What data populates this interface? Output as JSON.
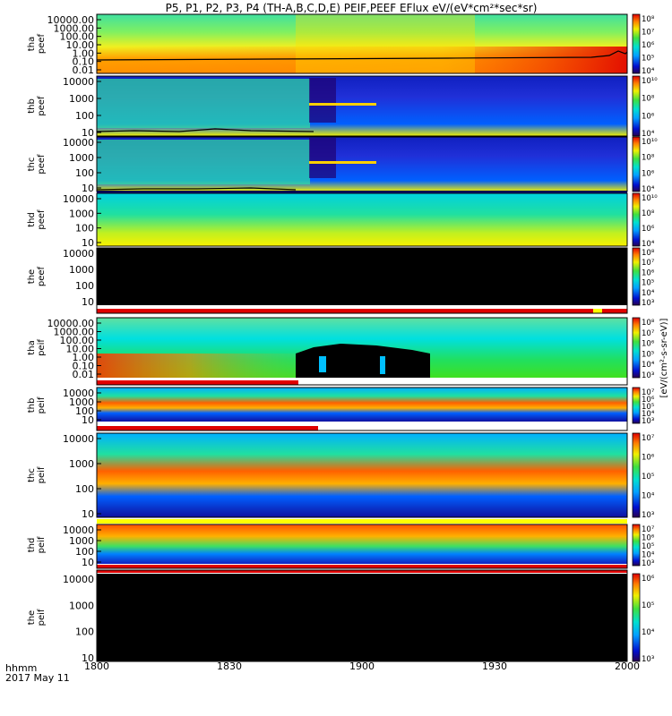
{
  "title": "P5, P1, P2, P3, P4 (TH-A,B,C,D,E) PEIF,PEEF EFlux eV/(eV*cm²*sec*sr)",
  "colorbar_label": "[eV/(cm²-s-sr-eV)]",
  "time_axis": {
    "label_line1": "hhmm",
    "label_line2": "2017 May 11",
    "ticks": [
      "1800",
      "1830",
      "1900",
      "1930",
      "2000"
    ]
  },
  "chart_data": [
    {
      "type": "heatmap",
      "ylabel": [
        "tha",
        "peef"
      ],
      "yticks": [
        "10000.00",
        "1000.00",
        "100.00",
        "10.00",
        "1.00",
        "0.10",
        "0.01"
      ],
      "colorbar_ticks": [
        "10⁸",
        "10⁷",
        "10⁶",
        "10⁵",
        "10⁴"
      ],
      "x_range": [
        "1800",
        "2000"
      ],
      "features": "warm (orange/red) flux band at low energy across interval; yellow/green at high energy; black potential trace near 1 eV"
    },
    {
      "type": "heatmap",
      "ylabel": [
        "thb",
        "peef"
      ],
      "yticks": [
        "10000",
        "1000",
        "100",
        "10"
      ],
      "colorbar_ticks": [
        "10¹⁰",
        "10⁸",
        "10⁶",
        "10⁴"
      ],
      "x_range": [
        "1800",
        "2000"
      ],
      "features": "green/cyan wavy structure 1800-1845, blue/purple after 1845; yellow band near 10 eV"
    },
    {
      "type": "heatmap",
      "ylabel": [
        "thc",
        "peef"
      ],
      "yticks": [
        "10000",
        "1000",
        "100",
        "10"
      ],
      "colorbar_ticks": [
        "10¹⁰",
        "10⁸",
        "10⁶",
        "10⁴"
      ],
      "x_range": [
        "1800",
        "2000"
      ],
      "features": "similar to thb; green wavy structure early, blue later"
    },
    {
      "type": "heatmap",
      "ylabel": [
        "thd",
        "peef"
      ],
      "yticks": [
        "10000",
        "1000",
        "100",
        "10"
      ],
      "colorbar_ticks": [
        "10¹⁰",
        "10⁸",
        "10⁶",
        "10⁴"
      ],
      "x_range": [
        "1800",
        "2000"
      ],
      "features": "smooth vertical gradient: cyan at top to yellow at bottom"
    },
    {
      "type": "heatmap",
      "ylabel": [
        "the",
        "peef"
      ],
      "yticks": [
        "10000",
        "1000",
        "100",
        "10"
      ],
      "colorbar_ticks": [
        "10⁸",
        "10⁷",
        "10⁶",
        "10⁵",
        "10⁴",
        "10³"
      ],
      "x_range": [
        "1800",
        "2000"
      ],
      "features": "no data (black) with red fill bar at bottom"
    },
    {
      "type": "heatmap",
      "ylabel": [
        "tha",
        "peif"
      ],
      "yticks": [
        "10000.00",
        "1000.00",
        "100.00",
        "10.00",
        "1.00",
        "0.10",
        "0.01"
      ],
      "colorbar_ticks": [
        "10⁸",
        "10⁷",
        "10⁶",
        "10⁵",
        "10⁴",
        "10³"
      ],
      "x_range": [
        "1800",
        "2000"
      ],
      "features": "red/orange at low energy early, black gap 1850-1910 near 1 eV, green elsewhere"
    },
    {
      "type": "heatmap",
      "ylabel": [
        "thb",
        "peif"
      ],
      "yticks": [
        "10000",
        "1000",
        "100",
        "10"
      ],
      "colorbar_ticks": [
        "10⁷",
        "10⁶",
        "10⁵",
        "10⁴",
        "10³"
      ],
      "x_range": [
        "1800",
        "2000"
      ],
      "features": "red/orange band near 1000 eV; blue low-energy region"
    },
    {
      "type": "heatmap",
      "ylabel": [
        "thc",
        "peif"
      ],
      "yticks": [
        "10000",
        "1000",
        "100",
        "10"
      ],
      "colorbar_ticks": [
        "10⁷",
        "10⁶",
        "10⁵",
        "10⁴",
        "10³"
      ],
      "x_range": [
        "1800",
        "2000"
      ],
      "features": "red band near 1000 eV; blue low-energy region"
    },
    {
      "type": "heatmap",
      "ylabel": [
        "thd",
        "peif"
      ],
      "yticks": [
        "10000",
        "1000",
        "100",
        "10"
      ],
      "colorbar_ticks": [
        "10⁷",
        "10⁶",
        "10⁵",
        "10⁴",
        "10³"
      ],
      "x_range": [
        "1800",
        "2000"
      ],
      "features": "orange at high energy, fading to blue at low energy"
    },
    {
      "type": "heatmap",
      "ylabel": [
        "the",
        "peif"
      ],
      "yticks": [
        "10000",
        "1000",
        "100",
        "10"
      ],
      "colorbar_ticks": [
        "10⁶",
        "10⁵",
        "10⁴",
        "10³"
      ],
      "x_range": [
        "1800",
        "2000"
      ],
      "features": "no data (black)"
    }
  ]
}
